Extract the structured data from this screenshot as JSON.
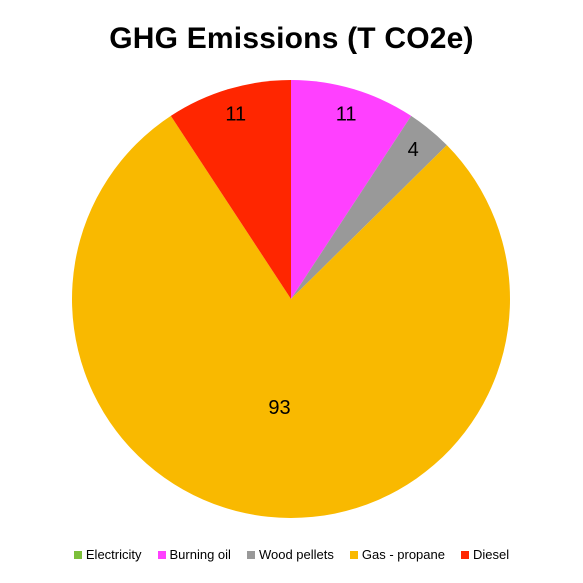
{
  "chart_data": {
    "type": "pie",
    "title": "GHG Emissions (T CO2e)",
    "legend_position": "bottom",
    "slices": [
      {
        "label": "Electricity",
        "value": 0,
        "color": "#7cbf3a"
      },
      {
        "label": "Burning oil",
        "value": 11,
        "color": "#ff40ff"
      },
      {
        "label": "Wood pellets",
        "value": 4,
        "color": "#999999"
      },
      {
        "label": "Gas - propane",
        "value": 93,
        "color": "#f9b900"
      },
      {
        "label": "Diesel",
        "value": 11,
        "color": "#ff2600"
      }
    ]
  }
}
